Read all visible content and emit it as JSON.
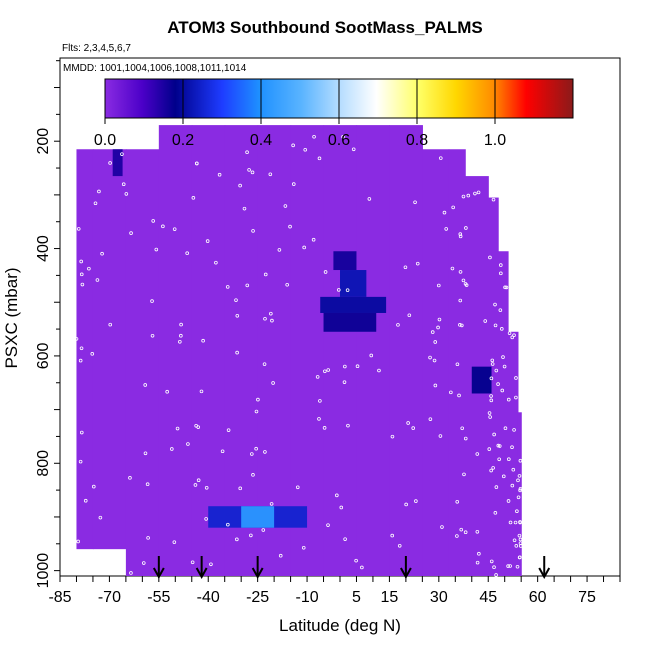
{
  "title": "ATOM3 Southbound SootMass_PALMS",
  "flights_note": "Flts: 2,3,4,5,6,7",
  "dates_note": "MMDD: 1001,1004,1006,1008,1011,1014",
  "colors": {
    "background_field": "#8a2be2",
    "point_outline": "#ffffff",
    "arrow": "#000000",
    "colorbar_stops": [
      "#8a2be2",
      "#00008b",
      "#1e90ff",
      "#87cefa",
      "#ffffff",
      "#ffff00",
      "#ffa500",
      "#ff0000",
      "#8b1a1a"
    ]
  },
  "chart_data": {
    "type": "heatmap",
    "title": "ATOM3 Southbound SootMass_PALMS",
    "xlabel": "Latitude (deg N)",
    "ylabel": "PSXC (mbar)",
    "xlim": [
      -85,
      85
    ],
    "ylim": [
      1010,
      45
    ],
    "y_reversed": true,
    "x_ticks": [
      -85,
      -70,
      -55,
      -40,
      -25,
      -10,
      5,
      15,
      30,
      45,
      60,
      75
    ],
    "y_ticks": [
      200,
      400,
      600,
      800,
      1000
    ],
    "grid": false,
    "colorbar": {
      "range": [
        0.0,
        1.2
      ],
      "ticks": [
        0.0,
        0.2,
        0.4,
        0.6,
        0.8,
        1.0
      ],
      "tick_labels": [
        "0.0",
        "0.2",
        "0.4",
        "0.6",
        "0.8",
        "1.0"
      ],
      "placement": "top"
    },
    "profile_arrows_lat": [
      -55,
      -42,
      -25,
      20,
      62
    ],
    "coverage_columns": [
      {
        "lat0": -80,
        "lat1": -75,
        "p_top": 215,
        "p_bot": 960
      },
      {
        "lat0": -75,
        "lat1": -65,
        "p_top": 215,
        "p_bot": 960
      },
      {
        "lat0": -65,
        "lat1": -55,
        "p_top": 215,
        "p_bot": 1010
      },
      {
        "lat0": -55,
        "lat1": -45,
        "p_top": 170,
        "p_bot": 1010
      },
      {
        "lat0": -45,
        "lat1": -35,
        "p_top": 170,
        "p_bot": 1010
      },
      {
        "lat0": -35,
        "lat1": -25,
        "p_top": 170,
        "p_bot": 1010
      },
      {
        "lat0": -25,
        "lat1": -15,
        "p_top": 170,
        "p_bot": 1010
      },
      {
        "lat0": -15,
        "lat1": -5,
        "p_top": 170,
        "p_bot": 1010
      },
      {
        "lat0": -5,
        "lat1": 5,
        "p_top": 170,
        "p_bot": 1010
      },
      {
        "lat0": 5,
        "lat1": 15,
        "p_top": 170,
        "p_bot": 1010
      },
      {
        "lat0": 15,
        "lat1": 25,
        "p_top": 170,
        "p_bot": 1010
      },
      {
        "lat0": 25,
        "lat1": 33,
        "p_top": 215,
        "p_bot": 1010
      },
      {
        "lat0": 33,
        "lat1": 38,
        "p_top": 215,
        "p_bot": 1010
      },
      {
        "lat0": 38,
        "lat1": 45,
        "p_top": 265,
        "p_bot": 1010
      },
      {
        "lat0": 45,
        "lat1": 48,
        "p_top": 305,
        "p_bot": 1010
      },
      {
        "lat0": 48,
        "lat1": 51,
        "p_top": 405,
        "p_bot": 1010
      },
      {
        "lat0": 51,
        "lat1": 54,
        "p_top": 555,
        "p_bot": 1010
      },
      {
        "lat0": 54,
        "lat1": 55,
        "p_top": 705,
        "p_bot": 1010
      }
    ],
    "cells": [
      {
        "lat0": -69,
        "lat1": -66,
        "p0": 215,
        "p1": 265,
        "value": 0.15
      },
      {
        "lat0": -2,
        "lat1": 5,
        "p0": 405,
        "p1": 440,
        "value": 0.16
      },
      {
        "lat0": 0,
        "lat1": 8,
        "p0": 440,
        "p1": 490,
        "value": 0.22
      },
      {
        "lat0": -6,
        "lat1": 14,
        "p0": 490,
        "p1": 520,
        "value": 0.2
      },
      {
        "lat0": -5,
        "lat1": 11,
        "p0": 520,
        "p1": 555,
        "value": 0.17
      },
      {
        "lat0": 40,
        "lat1": 46,
        "p0": 620,
        "p1": 670,
        "value": 0.18
      },
      {
        "lat0": -40,
        "lat1": -10,
        "p0": 880,
        "p1": 920,
        "value": 0.25
      },
      {
        "lat0": -30,
        "lat1": -20,
        "p0": 880,
        "p1": 920,
        "value": 0.42
      }
    ]
  }
}
